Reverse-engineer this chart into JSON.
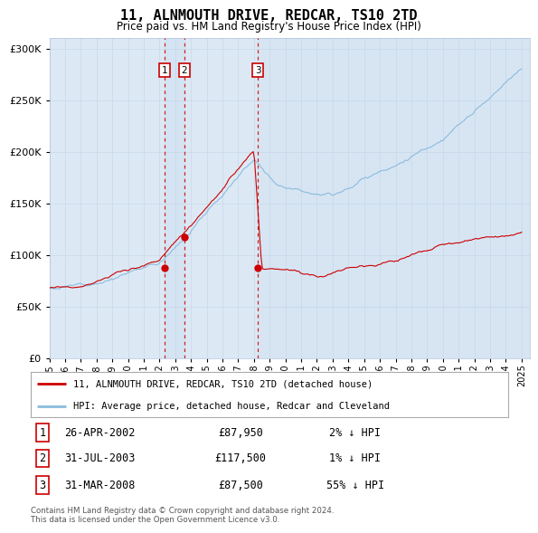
{
  "title": "11, ALNMOUTH DRIVE, REDCAR, TS10 2TD",
  "subtitle": "Price paid vs. HM Land Registry's House Price Index (HPI)",
  "hpi_label": "HPI: Average price, detached house, Redcar and Cleveland",
  "property_label": "11, ALNMOUTH DRIVE, REDCAR, TS10 2TD (detached house)",
  "transactions": [
    {
      "num": 1,
      "date": "26-APR-2002",
      "price": 87950,
      "pct": "2%",
      "dir": "↓"
    },
    {
      "num": 2,
      "date": "31-JUL-2003",
      "price": 117500,
      "pct": "1%",
      "dir": "↓"
    },
    {
      "num": 3,
      "date": "31-MAR-2008",
      "price": 87500,
      "pct": "55%",
      "dir": "↓"
    }
  ],
  "transaction_dates_decimal": [
    2002.32,
    2003.58,
    2008.25
  ],
  "transaction_prices": [
    87950,
    117500,
    87500
  ],
  "ylim": [
    0,
    310000
  ],
  "yticks": [
    0,
    50000,
    100000,
    150000,
    200000,
    250000,
    300000
  ],
  "xlim_start": 1995.0,
  "xlim_end": 2025.5,
  "plot_bg_color": "#dce9f5",
  "hpi_color": "#8bbcdd",
  "property_color": "#cc0000",
  "dashed_line_color": "#cc0000",
  "grid_color": "#c8d8e8",
  "footnote": "Contains HM Land Registry data © Crown copyright and database right 2024.\nThis data is licensed under the Open Government Licence v3.0.",
  "xtick_years": [
    1995,
    1996,
    1997,
    1998,
    1999,
    2000,
    2001,
    2002,
    2003,
    2004,
    2005,
    2006,
    2007,
    2008,
    2009,
    2010,
    2011,
    2012,
    2013,
    2014,
    2015,
    2016,
    2017,
    2018,
    2019,
    2020,
    2021,
    2022,
    2023,
    2024,
    2025
  ]
}
